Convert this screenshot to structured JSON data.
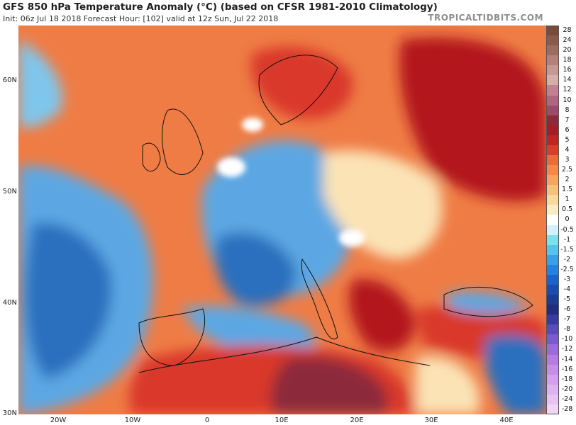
{
  "header": {
    "title": "GFS 850 hPa Temperature Anomaly (°C) (based on CFSR 1981-2010 Climatology)",
    "subtitle": "Init: 06z Jul 18 2018   Forecast Hour: [102]   valid at 12z Sun, Jul 22 2018",
    "brand": "TROPICALTIDBITS.COM"
  },
  "axes": {
    "lat_labels": [
      "60N",
      "50N",
      "40N",
      "30N"
    ],
    "lon_labels": [
      "20W",
      "10W",
      "0",
      "10E",
      "20E",
      "30E",
      "40E"
    ]
  },
  "colors": {
    "deep_red": "#b3151b",
    "red": "#d9382a",
    "orange": "#ef7c45",
    "light_orange": "#f6b27c",
    "cream": "#fbe3b6",
    "neutral": "#ffffff",
    "light_blue": "#a7d6f2",
    "blue": "#5ba7e3",
    "deep_blue": "#2a6fbe",
    "navy": "#1a4b93",
    "maroon": "#8c2a3a"
  },
  "colorbar": {
    "levels": [
      {
        "label": "28",
        "color": "#7a4a3a"
      },
      {
        "label": "24",
        "color": "#8a5a4c"
      },
      {
        "label": "20",
        "color": "#9c6c60"
      },
      {
        "label": "18",
        "color": "#b48078"
      },
      {
        "label": "16",
        "color": "#c69892"
      },
      {
        "label": "14",
        "color": "#d6aeaa"
      },
      {
        "label": "12",
        "color": "#c47f96"
      },
      {
        "label": "10",
        "color": "#b06683"
      },
      {
        "label": "8",
        "color": "#9c4a6c"
      },
      {
        "label": "7",
        "color": "#8a2a3e"
      },
      {
        "label": "6",
        "color": "#a31c26"
      },
      {
        "label": "5",
        "color": "#c22424"
      },
      {
        "label": "4",
        "color": "#dc3c2c"
      },
      {
        "label": "3",
        "color": "#ec6a3c"
      },
      {
        "label": "2.5",
        "color": "#f28a4c"
      },
      {
        "label": "2",
        "color": "#f4a562"
      },
      {
        "label": "1.5",
        "color": "#f7c07e"
      },
      {
        "label": "1",
        "color": "#f9d89c"
      },
      {
        "label": "0.5",
        "color": "#fbebc4"
      },
      {
        "label": "0",
        "color": "#ffffff"
      },
      {
        "label": "-0.5",
        "color": "#d4f0fa"
      },
      {
        "label": "-1",
        "color": "#7fe0ea"
      },
      {
        "label": "-1.5",
        "color": "#5cc2ec"
      },
      {
        "label": "-2",
        "color": "#3e9ee2"
      },
      {
        "label": "-2.5",
        "color": "#2a80d8"
      },
      {
        "label": "-3",
        "color": "#1e62c4"
      },
      {
        "label": "-4",
        "color": "#1a4ea8"
      },
      {
        "label": "-5",
        "color": "#183e8c"
      },
      {
        "label": "-6",
        "color": "#1e2e78"
      },
      {
        "label": "-7",
        "color": "#3a3a9a"
      },
      {
        "label": "-8",
        "color": "#5a4cb4"
      },
      {
        "label": "-10",
        "color": "#7a5cc8"
      },
      {
        "label": "-12",
        "color": "#9a6cd8"
      },
      {
        "label": "-14",
        "color": "#b47ce4"
      },
      {
        "label": "-16",
        "color": "#c68eea"
      },
      {
        "label": "-18",
        "color": "#d2a0ee"
      },
      {
        "label": "-20",
        "color": "#dcb2f0"
      },
      {
        "label": "-24",
        "color": "#e6c4f2"
      },
      {
        "label": "-28",
        "color": "#f0d6f4"
      }
    ]
  }
}
